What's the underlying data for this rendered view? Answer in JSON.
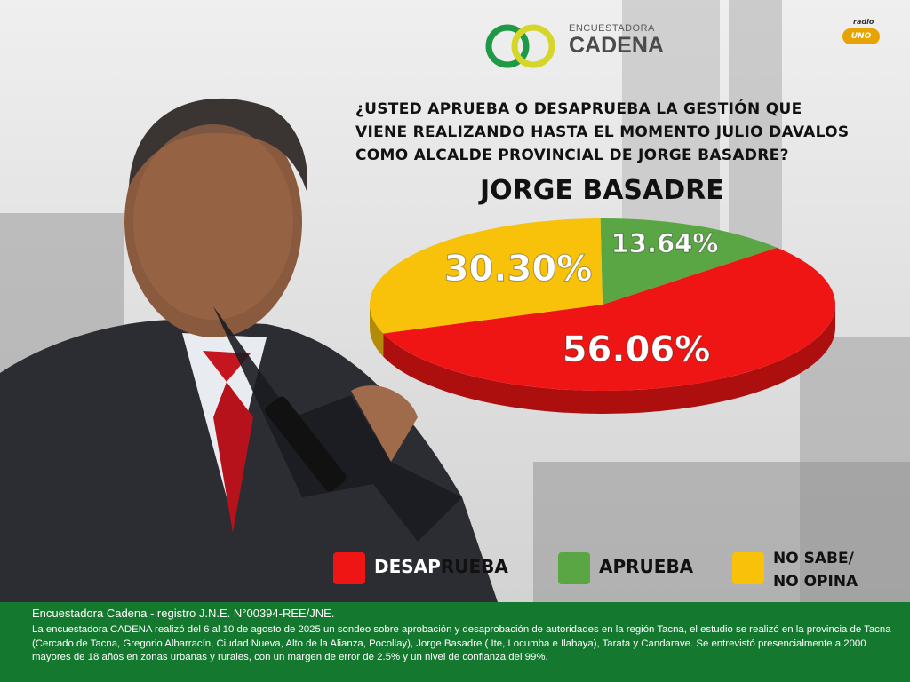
{
  "brand": {
    "top": "ENCUESTADORA",
    "bottom": "CADENA"
  },
  "radio": {
    "top": "radio",
    "name": "UNO"
  },
  "question": "¿USTED APRUEBA O DESAPRUEBA LA GESTIÓN QUE VIENE REALIZANDO HASTA EL MOMENTO JULIO DAVALOS COMO ALCALDE PROVINCIAL DE JORGE BASADRE?",
  "region": "JORGE BASADRE",
  "colors": {
    "red": "#f01515",
    "green": "#5aa645",
    "yellow": "#f8c10a",
    "footer": "#15782f"
  },
  "chart_data": {
    "type": "pie",
    "slices": [
      {
        "label": "DESAPRUEBA",
        "value": 56.06,
        "display": "56.06%",
        "color": "#f01515"
      },
      {
        "label": "APRUEBA",
        "value": 13.64,
        "display": "13.64%",
        "color": "#5aa645"
      },
      {
        "label": "NO SABE/ NO OPINA",
        "value": 30.3,
        "display": "30.30%",
        "color": "#f8c10a"
      }
    ]
  },
  "legend": {
    "desaprueba_a": "DESAP",
    "desaprueba_b": "RUEBA",
    "aprueba": "APRUEBA",
    "nosabe_1": "NO SABE/",
    "nosabe_2": "NO OPINA"
  },
  "footer": {
    "head": "Encuestadora Cadena - registro J.N.E. N°00394-REE/JNE.",
    "body": "La encuestadora CADENA realizó del 6 al 10 de agosto de 2025 un sondeo sobre aprobación y desaprobación de autoridades en la región Tacna, el estudio se realizó en la provincia de Tacna (Cercado de Tacna, Gregorio Albarracín, Ciudad Nueva, Alto de la Alianza, Pocollay), Jorge Basadre ( Ite, Locumba e Ilabaya), Tarata y Candarave. Se entrevistó presencialmente a 2000 mayores de 18 años en zonas urbanas y rurales, con un margen de error de 2.5% y un nivel de confianza del 99%."
  }
}
